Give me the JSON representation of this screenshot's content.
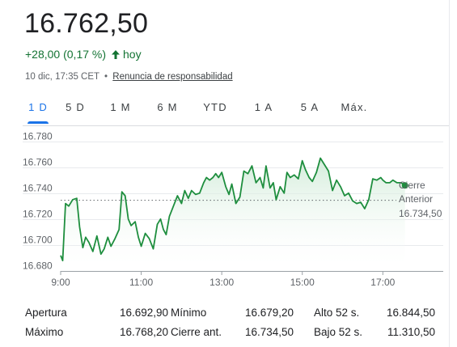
{
  "quote": {
    "price": "16.762,50",
    "change": "+28,00 (0,17 %)",
    "period": "hoy",
    "timestamp": "10 dic, 17:35 CET",
    "separator": "•",
    "disclaimer": "Renuncia de responsabilidad",
    "up_color": "#137333"
  },
  "tabs": [
    {
      "label": "1 D",
      "active": true
    },
    {
      "label": "5 D",
      "active": false
    },
    {
      "label": "1 M",
      "active": false
    },
    {
      "label": "6 M",
      "active": false
    },
    {
      "label": "YTD",
      "active": false
    },
    {
      "label": "1 A",
      "active": false
    },
    {
      "label": "5 A",
      "active": false
    },
    {
      "label": "Máx.",
      "active": false
    }
  ],
  "chart_data": {
    "type": "line",
    "x_ticks": [
      "9:00",
      "11:00",
      "13:00",
      "15:00",
      "17:00"
    ],
    "y_ticks": [
      "16.780",
      "16.760",
      "16.740",
      "16.720",
      "16.700",
      "16.680"
    ],
    "y_tick_values": [
      16780,
      16760,
      16740,
      16720,
      16700,
      16680
    ],
    "xlim": [
      9.0,
      18.5
    ],
    "ylim": [
      16680,
      16786
    ],
    "line_color": "#1e8e3e",
    "fill_color": "#e6f4ea",
    "previous_close": {
      "value": 16734.5,
      "label_line1": "Cierre",
      "label_line2": "Anterior",
      "label_value": "16.734,50"
    },
    "x": [
      9.0,
      9.05,
      9.12,
      9.2,
      9.3,
      9.4,
      9.47,
      9.55,
      9.62,
      9.7,
      9.8,
      9.9,
      10.0,
      10.08,
      10.17,
      10.25,
      10.35,
      10.45,
      10.52,
      10.6,
      10.68,
      10.75,
      10.85,
      10.93,
      11.0,
      11.1,
      11.2,
      11.3,
      11.4,
      11.48,
      11.55,
      11.62,
      11.7,
      11.8,
      11.9,
      12.0,
      12.08,
      12.17,
      12.25,
      12.35,
      12.45,
      12.55,
      12.62,
      12.7,
      12.78,
      12.85,
      12.92,
      13.0,
      13.1,
      13.18,
      13.25,
      13.35,
      13.45,
      13.55,
      13.65,
      13.75,
      13.85,
      13.95,
      14.03,
      14.1,
      14.2,
      14.28,
      14.35,
      14.45,
      14.55,
      14.62,
      14.7,
      14.8,
      14.9,
      15.0,
      15.08,
      15.17,
      15.25,
      15.35,
      15.45,
      15.55,
      15.65,
      15.75,
      15.85,
      15.95,
      16.05,
      16.15,
      16.25,
      16.35,
      16.45,
      16.55,
      16.65,
      16.75,
      16.85,
      16.95,
      17.0,
      17.08,
      17.17,
      17.25,
      17.35,
      17.45,
      17.55
    ],
    "y": [
      16692,
      16688,
      16732,
      16730,
      16735,
      16736,
      16714,
      16698,
      16706,
      16702,
      16695,
      16707,
      16693,
      16697,
      16706,
      16699,
      16705,
      16712,
      16741,
      16738,
      16720,
      16715,
      16718,
      16706,
      16699,
      16709,
      16705,
      16697,
      16716,
      16720,
      16712,
      16708,
      16722,
      16730,
      16738,
      16732,
      16742,
      16736,
      16742,
      16739,
      16740,
      16748,
      16752,
      16750,
      16752,
      16755,
      16752,
      16756,
      16745,
      16739,
      16747,
      16732,
      16737,
      16757,
      16755,
      16761,
      16748,
      16752,
      16744,
      16761,
      16744,
      16748,
      16735,
      16745,
      16740,
      16756,
      16752,
      16754,
      16751,
      16765,
      16758,
      16752,
      16749,
      16756,
      16767,
      16762,
      16757,
      16742,
      16750,
      16745,
      16738,
      16740,
      16734,
      16732,
      16733,
      16728,
      16735,
      16751,
      16750,
      16752,
      16750,
      16748,
      16748,
      16750,
      16748,
      16748,
      16746
    ],
    "last_point": {
      "x": 17.55,
      "y": 16746
    }
  },
  "stats": [
    [
      {
        "label": "Apertura",
        "value": "16.692,90"
      },
      {
        "label": "Mínimo",
        "value": "16.679,20"
      },
      {
        "label": "Alto 52 s.",
        "value": "16.844,50"
      }
    ],
    [
      {
        "label": "Máximo",
        "value": "16.768,20"
      },
      {
        "label": "Cierre ant.",
        "value": "16.734,50"
      },
      {
        "label": "Bajo 52 s.",
        "value": "11.310,50"
      }
    ]
  ]
}
